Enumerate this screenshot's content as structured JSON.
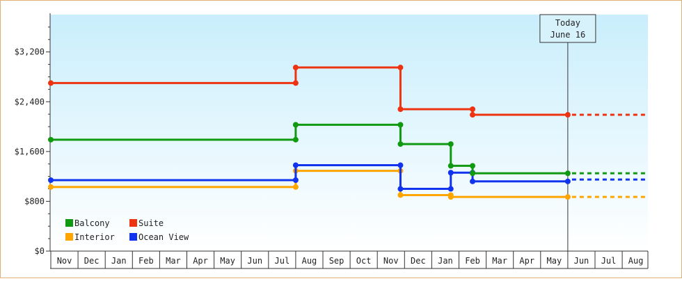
{
  "chart_data": {
    "type": "line",
    "subtype": "step",
    "y_ticks": [
      {
        "value": 0,
        "label": "$0"
      },
      {
        "value": 800,
        "label": "$800"
      },
      {
        "value": 1600,
        "label": "$1,600"
      },
      {
        "value": 2400,
        "label": "$2,400"
      },
      {
        "value": 3200,
        "label": "$3,200"
      }
    ],
    "ylim": [
      0,
      3800
    ],
    "x_categories": [
      "Nov",
      "Dec",
      "Jan",
      "Feb",
      "Mar",
      "Apr",
      "May",
      "Jun",
      "Jul",
      "Aug",
      "Sep",
      "Oct",
      "Nov",
      "Dec",
      "Jan",
      "Feb",
      "Mar",
      "Apr",
      "May",
      "Jun",
      "Jul",
      "Aug"
    ],
    "today_marker": {
      "line1": "Today",
      "line2": "June 16",
      "position_index": 19
    },
    "forecast_end_index": 22,
    "series": [
      {
        "name": "Balcony",
        "color": "#119911",
        "points": [
          {
            "i": 0,
            "y": 1790
          },
          {
            "i": 9,
            "y": 1790
          },
          {
            "i": 9,
            "y": 2030
          },
          {
            "i": 12.85,
            "y": 2030
          },
          {
            "i": 12.85,
            "y": 1720
          },
          {
            "i": 14.7,
            "y": 1720
          },
          {
            "i": 14.7,
            "y": 1370
          },
          {
            "i": 15.5,
            "y": 1370
          },
          {
            "i": 15.5,
            "y": 1250
          },
          {
            "i": 19,
            "y": 1250
          }
        ]
      },
      {
        "name": "Interior",
        "color": "#ffa500",
        "points": [
          {
            "i": 0,
            "y": 1030
          },
          {
            "i": 9,
            "y": 1030
          },
          {
            "i": 9,
            "y": 1290
          },
          {
            "i": 12.85,
            "y": 1290
          },
          {
            "i": 12.85,
            "y": 900
          },
          {
            "i": 14.7,
            "y": 900
          },
          {
            "i": 14.7,
            "y": 870
          },
          {
            "i": 19,
            "y": 870
          }
        ]
      },
      {
        "name": "Suite",
        "color": "#ee3311",
        "points": [
          {
            "i": 0,
            "y": 2700
          },
          {
            "i": 9,
            "y": 2700
          },
          {
            "i": 9,
            "y": 2950
          },
          {
            "i": 12.85,
            "y": 2950
          },
          {
            "i": 12.85,
            "y": 2280
          },
          {
            "i": 15.5,
            "y": 2280
          },
          {
            "i": 15.5,
            "y": 2190
          },
          {
            "i": 19,
            "y": 2190
          }
        ]
      },
      {
        "name": "Ocean View",
        "color": "#1133ee",
        "points": [
          {
            "i": 0,
            "y": 1140
          },
          {
            "i": 9,
            "y": 1140
          },
          {
            "i": 9,
            "y": 1380
          },
          {
            "i": 12.85,
            "y": 1380
          },
          {
            "i": 12.85,
            "y": 1000
          },
          {
            "i": 14.7,
            "y": 1000
          },
          {
            "i": 14.7,
            "y": 1260
          },
          {
            "i": 15.5,
            "y": 1260
          },
          {
            "i": 15.5,
            "y": 1120
          },
          {
            "i": 19,
            "y": 1120
          }
        ]
      }
    ],
    "forecast_values": {
      "Balcony": 1250,
      "Interior": 870,
      "Suite": 2190,
      "Ocean View": 1150
    },
    "legend": {
      "placement": "bottom-left",
      "rows": [
        [
          "Balcony",
          "Suite"
        ],
        [
          "Interior",
          "Ocean View"
        ]
      ]
    },
    "grid": false
  }
}
